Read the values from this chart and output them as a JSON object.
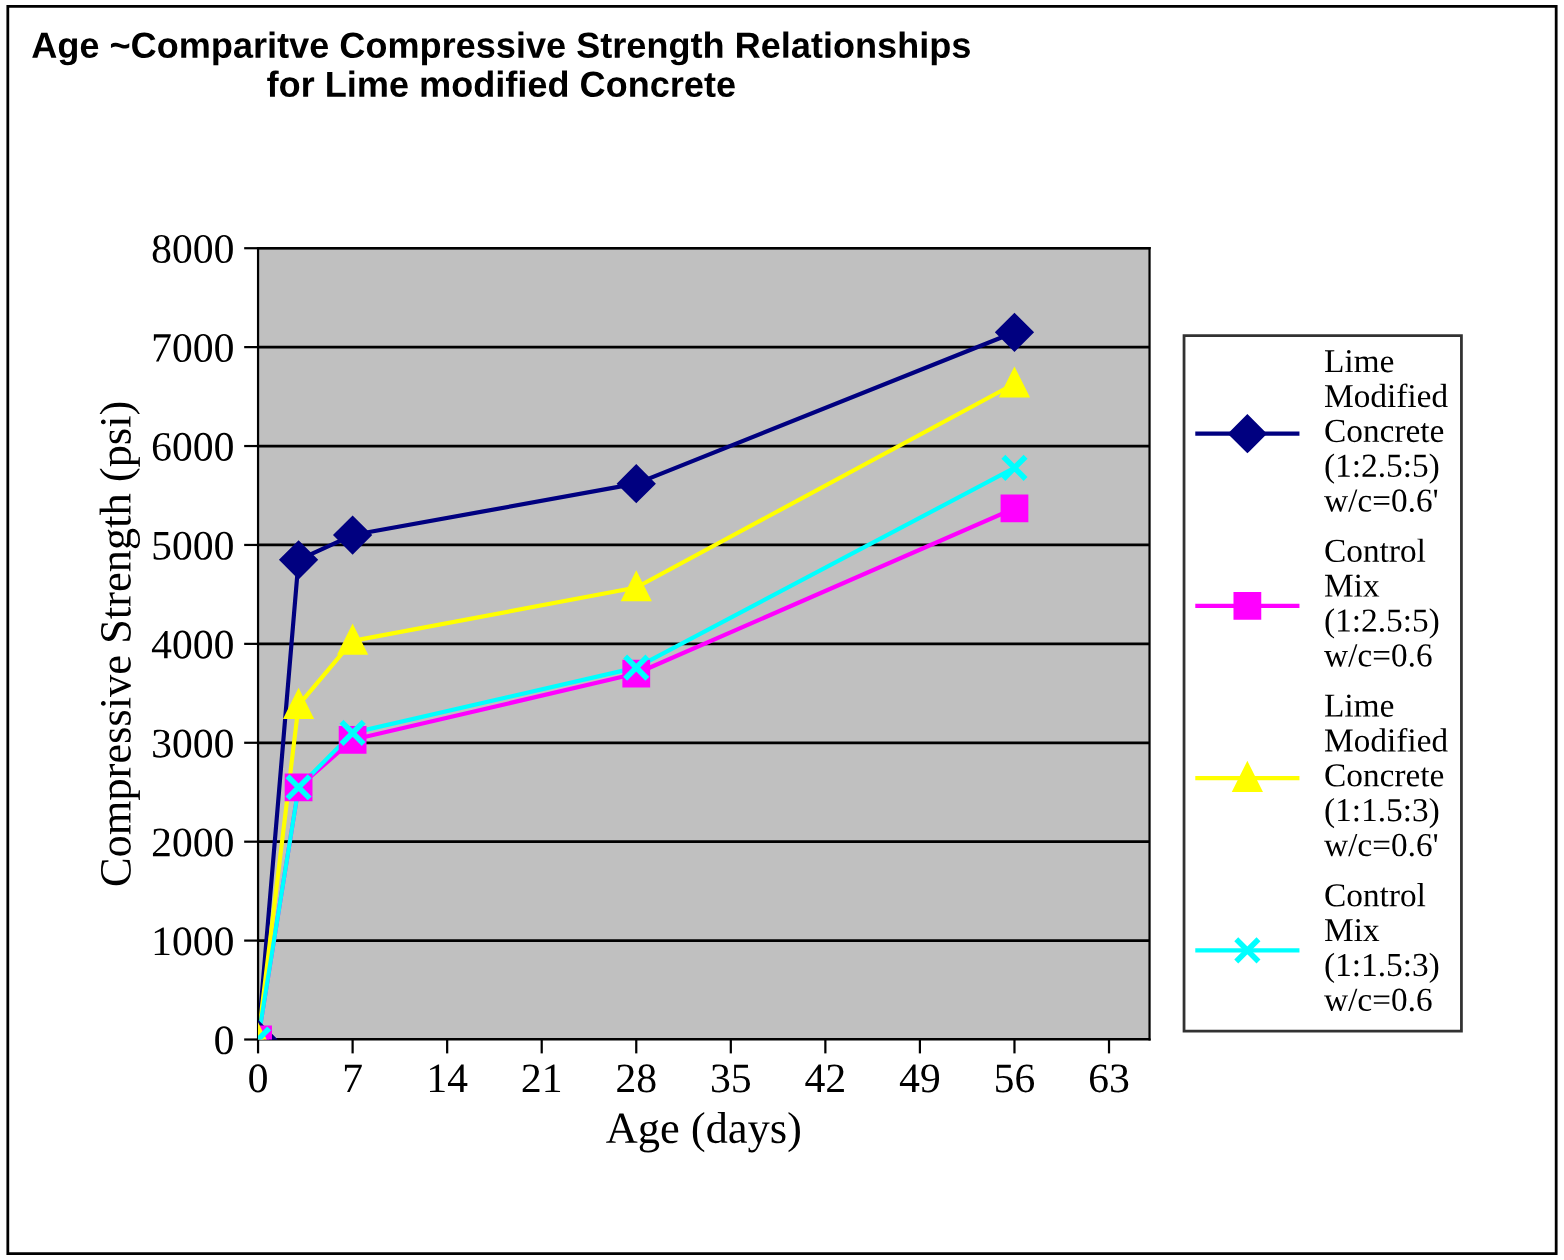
{
  "chart_data": {
    "type": "line",
    "title": "Age ~Comparitve Compressive Strength Relationships\nfor Lime modified Concrete",
    "xlabel": "Age (days)",
    "ylabel": "Compressive Strength (psi)",
    "x": [
      0,
      3,
      7,
      28,
      56
    ],
    "series": [
      {
        "name": "Lime\nModified\nConcrete\n(1:2.5:5)\nw/c=0.6'",
        "color": "#000080",
        "marker": "diamond",
        "values": [
          0,
          4850,
          5100,
          5620,
          7150
        ]
      },
      {
        "name": "Control\nMix\n(1:2.5:5)\nw/c=0.6",
        "color": "#ff00ff",
        "marker": "square",
        "values": [
          0,
          2550,
          3030,
          3700,
          5370
        ]
      },
      {
        "name": "Lime\nModified\nConcrete\n(1:1.5:3)\nw/c=0.6'",
        "color": "#ffff00",
        "marker": "triangle",
        "values": [
          0,
          3380,
          4030,
          4570,
          6630
        ]
      },
      {
        "name": "Control\nMix\n(1:1.5:3)\nw/c=0.6",
        "color": "#00ffff",
        "marker": "cross",
        "values": [
          0,
          2550,
          3100,
          3760,
          5780
        ]
      }
    ],
    "xlim": [
      0,
      66
    ],
    "xticks": [
      0,
      7,
      14,
      21,
      28,
      35,
      42,
      49,
      56,
      63
    ],
    "ylim": [
      0,
      8000
    ],
    "yticks": [
      0,
      1000,
      2000,
      3000,
      4000,
      5000,
      6000,
      7000,
      8000
    ],
    "grid": "y",
    "legend": "right",
    "line_style": "solid"
  }
}
